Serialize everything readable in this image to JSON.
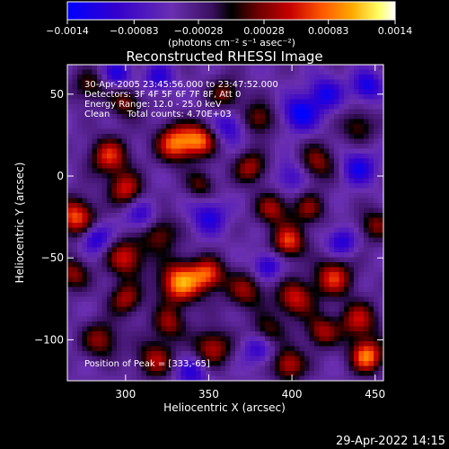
{
  "chart_data": {
    "type": "heatmap",
    "title": "Reconstructed RHESSI Image",
    "xlabel": "Heliocentric X (arcsec)",
    "ylabel": "Heliocentric Y (arcsec)",
    "xlim": [
      265,
      455
    ],
    "ylim": [
      -125,
      68
    ],
    "x_ticks": [
      300,
      350,
      400,
      450
    ],
    "x_tick_labels": [
      "300",
      "350",
      "400",
      "450"
    ],
    "y_ticks": [
      50,
      0,
      -50,
      -100
    ],
    "y_tick_labels": [
      "50",
      "0",
      "−50",
      "−100"
    ],
    "colorbar": {
      "range": [
        -0.0014,
        0.0014
      ],
      "tick_labels": [
        "−0.0014",
        "−0.00083",
        "−0.00028",
        "0.00028",
        "0.00083",
        "0.0014"
      ],
      "units_label": "(photons cm⁻² s⁻¹ asec⁻²)",
      "colors": [
        "#0000ff",
        "#3300cc",
        "#6a2fb0",
        "#3a1060",
        "#000000",
        "#6a0000",
        "#c80000",
        "#ff5a00",
        "#ffaa00",
        "#ffff66",
        "#ffffff"
      ]
    },
    "annotations": [
      "30-Apr-2005 23:45:56.000 to 23:47:52.000",
      "Detectors: 3F 4F 5F 6F 7F 8F, Att 0",
      "Energy Range: 12.0 - 25.0 keV",
      "Clean      Total counts: 4.70E+03"
    ],
    "peak_label": "Position of Peak = [333,-65]",
    "timestamp": "29-Apr-2022 14:15"
  }
}
